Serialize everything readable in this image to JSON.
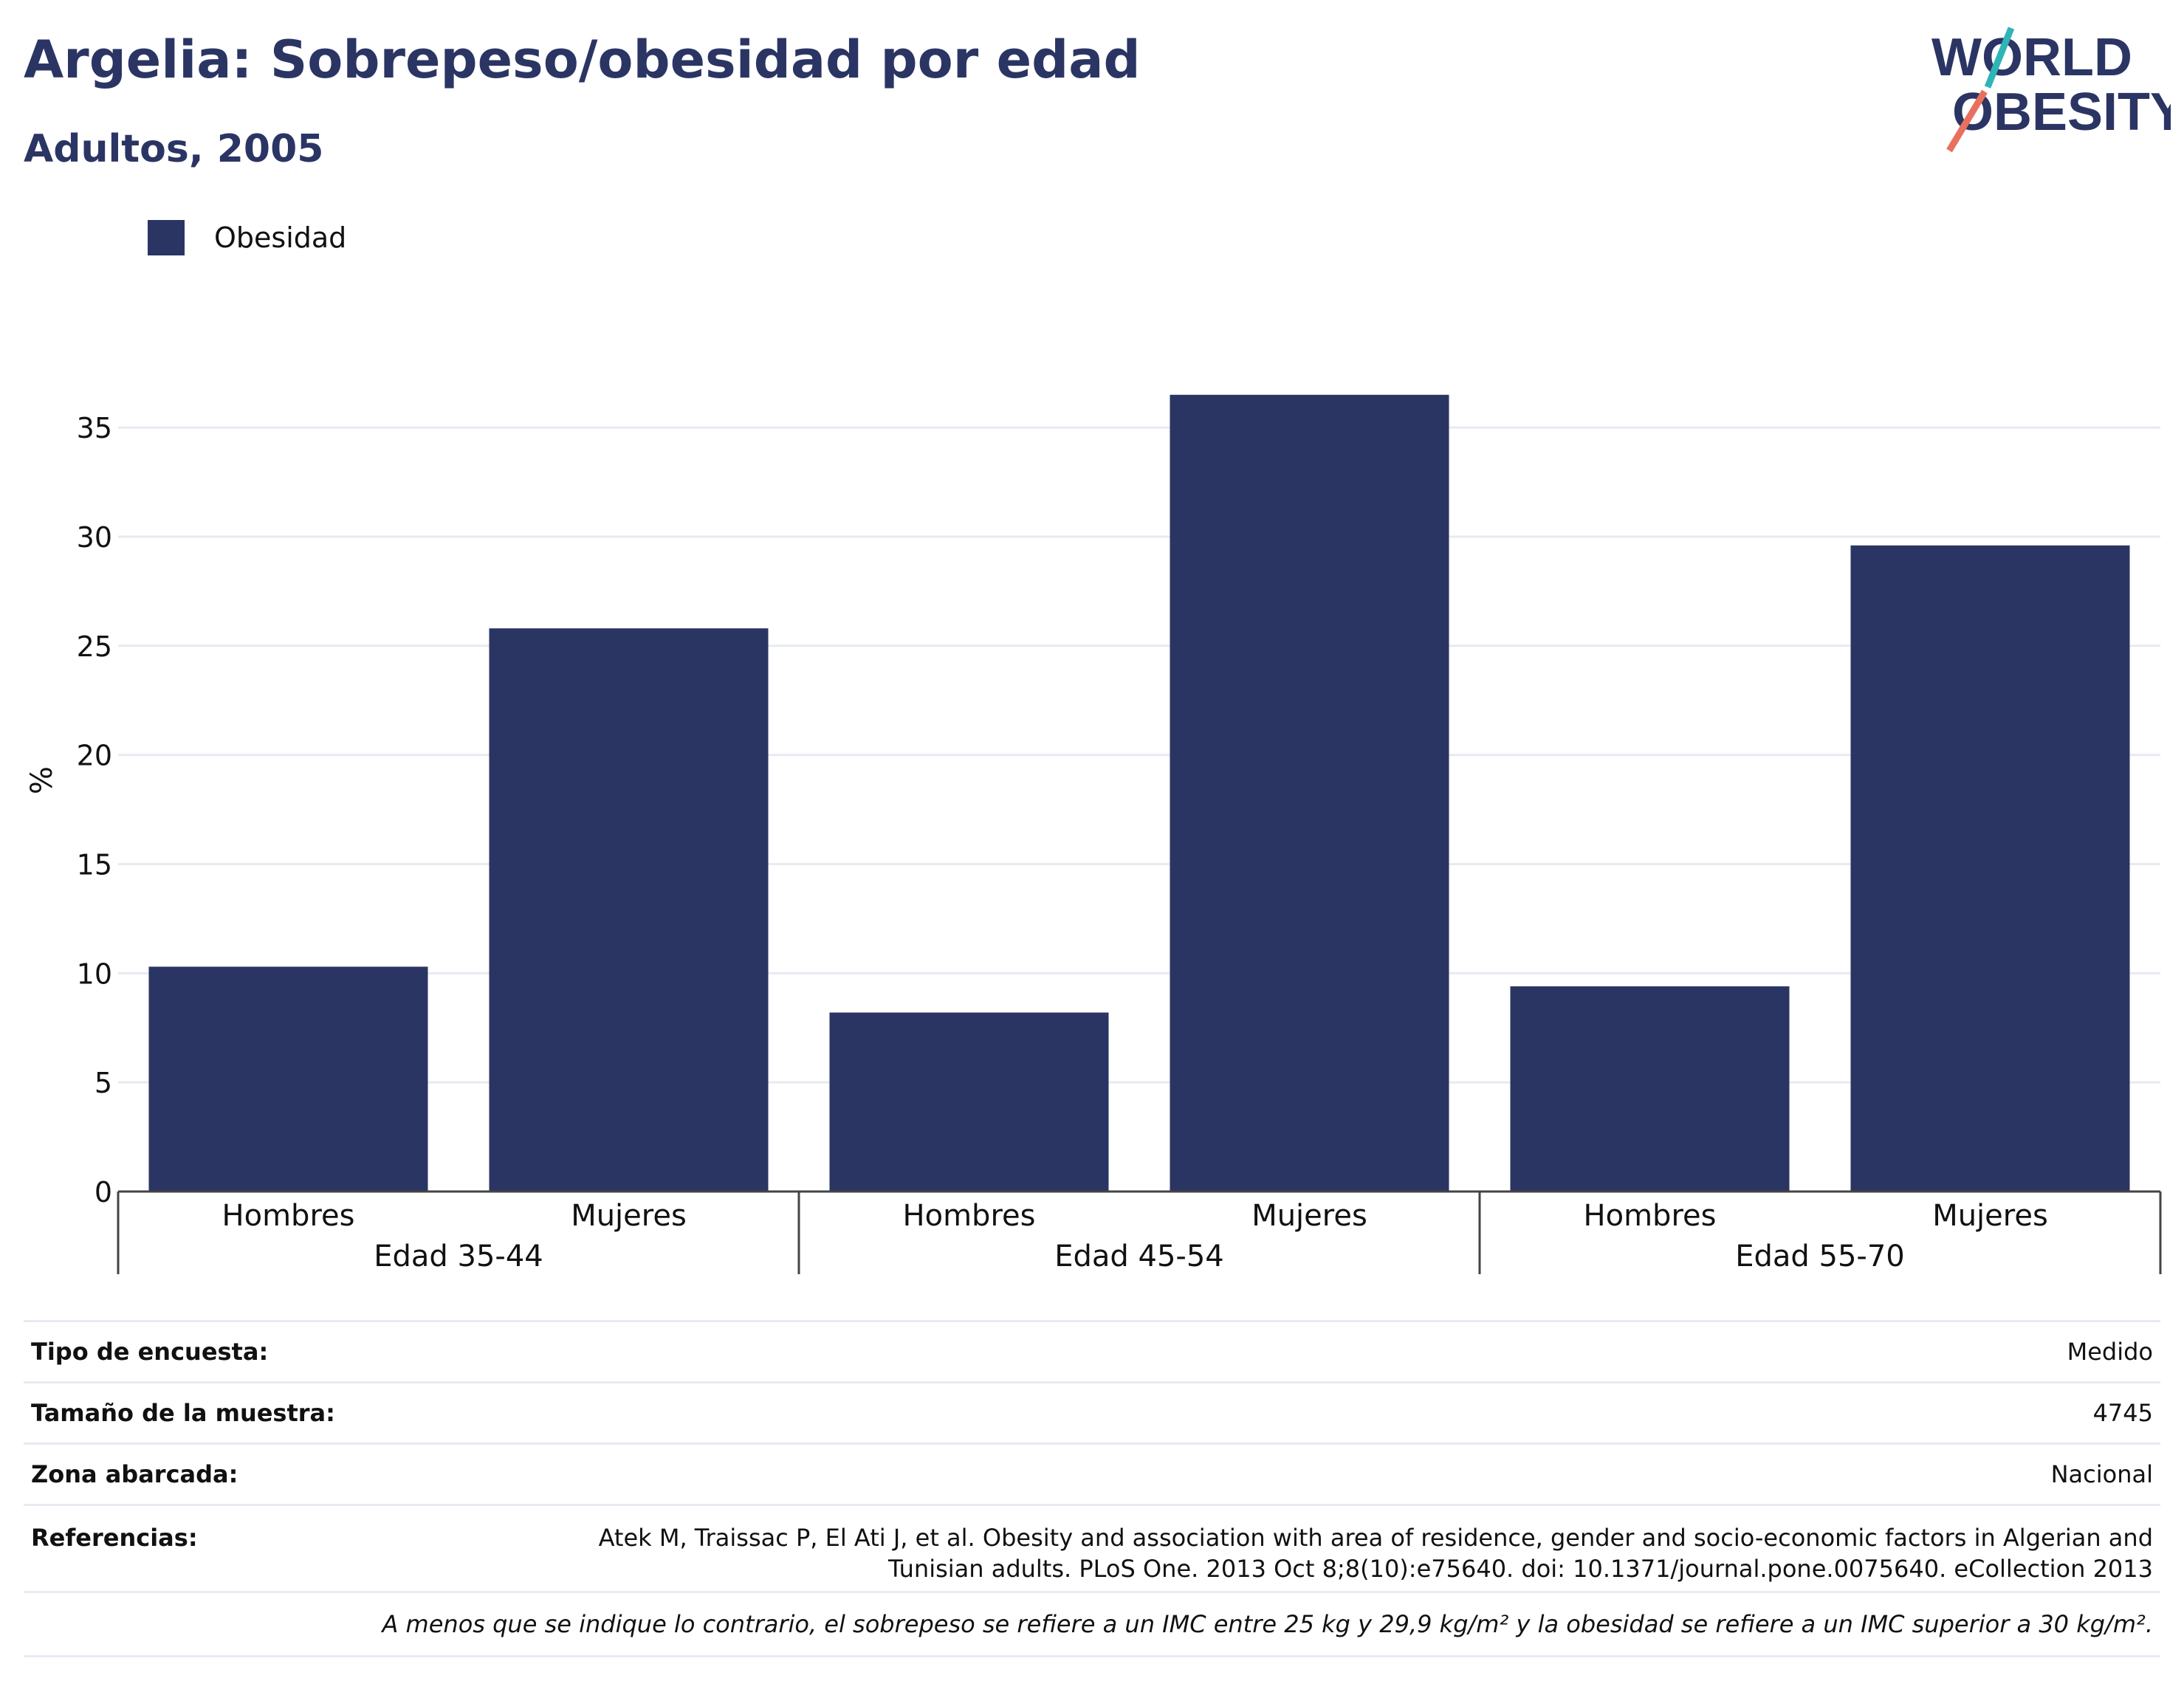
{
  "header": {
    "title": "Argelia: Sobrepeso/obesidad por edad",
    "subtitle": "Adultos, 2005"
  },
  "logo": {
    "line1": "WORLD",
    "line2": "OBESITY",
    "icon": "world-obesity-logo"
  },
  "colors": {
    "bar": "#2b3564",
    "title": "#2b3564",
    "grid": "#e8eaf2",
    "logo_teal": "#2fb4b8",
    "logo_coral": "#e8705e"
  },
  "chart_data": {
    "type": "bar",
    "legend": [
      "Obesidad"
    ],
    "legend_position": "top-left",
    "ylabel": "%",
    "ylim": [
      0,
      37
    ],
    "yticks": [
      0,
      5,
      10,
      15,
      20,
      25,
      30,
      35
    ],
    "grid": true,
    "groups": [
      {
        "label": "Edad 35-44",
        "categories": [
          "Hombres",
          "Mujeres"
        ]
      },
      {
        "label": "Edad 45-54",
        "categories": [
          "Hombres",
          "Mujeres"
        ]
      },
      {
        "label": "Edad 55-70",
        "categories": [
          "Hombres",
          "Mujeres"
        ]
      }
    ],
    "series": [
      {
        "name": "Obesidad",
        "values": [
          10.3,
          25.8,
          8.2,
          36.5,
          9.4,
          29.6
        ]
      }
    ]
  },
  "info": {
    "survey_type_label": "Tipo de encuesta:",
    "survey_type_value": "Medido",
    "sample_size_label": "Tamaño de la muestra:",
    "sample_size_value": "4745",
    "coverage_label": "Zona abarcada:",
    "coverage_value": "Nacional",
    "references_label": "Referencias:",
    "references_value": "Atek M, Traissac P, El Ati J, et al. Obesity and association with area of residence, gender and socio-economic factors in Algerian and Tunisian adults. PLoS One. 2013 Oct 8;8(10):e75640. doi: 10.1371/journal.pone.0075640. eCollection 2013",
    "note": "A menos que se indique lo contrario, el sobrepeso se refiere a un IMC entre 25 kg y 29,9 kg/m² y la obesidad se refiere a un IMC superior a 30 kg/m²."
  }
}
